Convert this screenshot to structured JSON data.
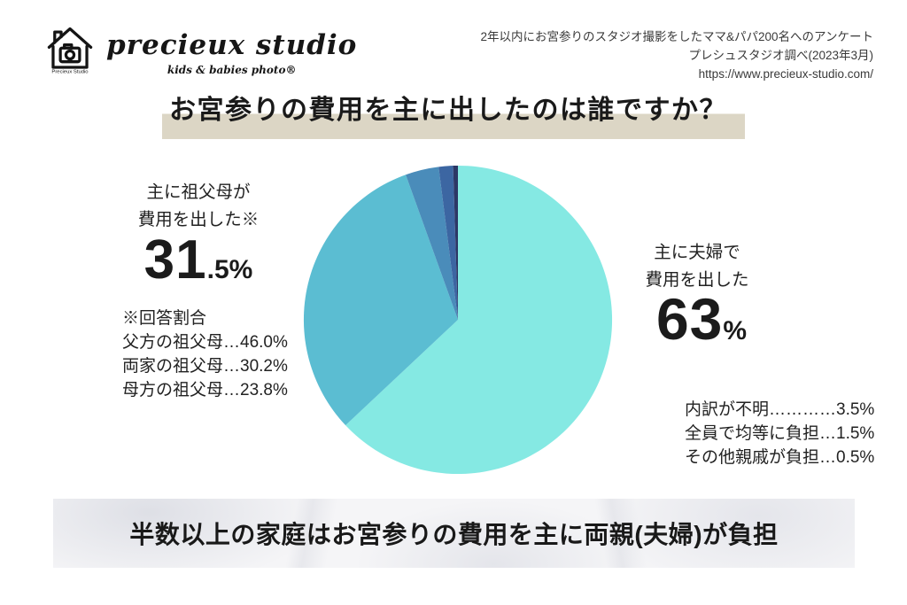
{
  "header": {
    "logo": {
      "brand": "precieux studio",
      "tagline": "kids & babies photo®",
      "icon_caption": "Precieux Studio"
    },
    "source": {
      "line1": "2年以内にお宮参りのスタジオ撮影をしたママ&パパ200名へのアンケート",
      "line2": "プレシュスタジオ調べ(2023年3月)",
      "line3": "https://www.precieux-studio.com/"
    }
  },
  "title": {
    "text": "お宮参りの費用を主に出したのは誰ですか？",
    "highlight_color": "#dcd6c5"
  },
  "chart_data": {
    "type": "pie",
    "title": "お宮参りの費用を主に出したのは誰ですか？",
    "start_angle": "top",
    "direction": "clockwise",
    "unit": "%",
    "slices": [
      {
        "label": "主に夫婦で費用を出した",
        "value": 63,
        "color": "#85e9e3"
      },
      {
        "label": "主に祖父母が費用を出した",
        "value": 31.5,
        "color": "#5bbdd2"
      },
      {
        "label": "内訳が不明",
        "value": 3.5,
        "color": "#4a8cba"
      },
      {
        "label": "全員で均等に負担",
        "value": 1.5,
        "color": "#3c66a2"
      },
      {
        "label": "その他親戚が負担",
        "value": 0.5,
        "color": "#2c3766"
      }
    ],
    "grandparents_breakdown": [
      {
        "label": "父方の祖父母",
        "value": 46.0
      },
      {
        "label": "両家の祖父母",
        "value": 30.2
      },
      {
        "label": "母方の祖父母",
        "value": 23.8
      }
    ]
  },
  "annotations": {
    "grandparents": {
      "label_line1": "主に祖父母が",
      "label_line2": "費用を出した※",
      "value_main": "31",
      "value_sub": ".5%",
      "note_title": "※回答割合",
      "breakdown_lines": [
        "父方の祖父母…46.0%",
        "両家の祖父母…30.2%",
        "母方の祖父母…23.8%"
      ]
    },
    "couple": {
      "label_line1": "主に夫婦で",
      "label_line2": "費用を出した",
      "value_main": "63",
      "value_sub": "%"
    },
    "minor_lines": [
      "内訳が不明…………3.5%",
      "全員で均等に負担…1.5%",
      "その他親戚が負担…0.5%"
    ]
  },
  "footer": {
    "text": "半数以上の家庭はお宮参りの費用を主に両親(夫婦)が負担"
  }
}
